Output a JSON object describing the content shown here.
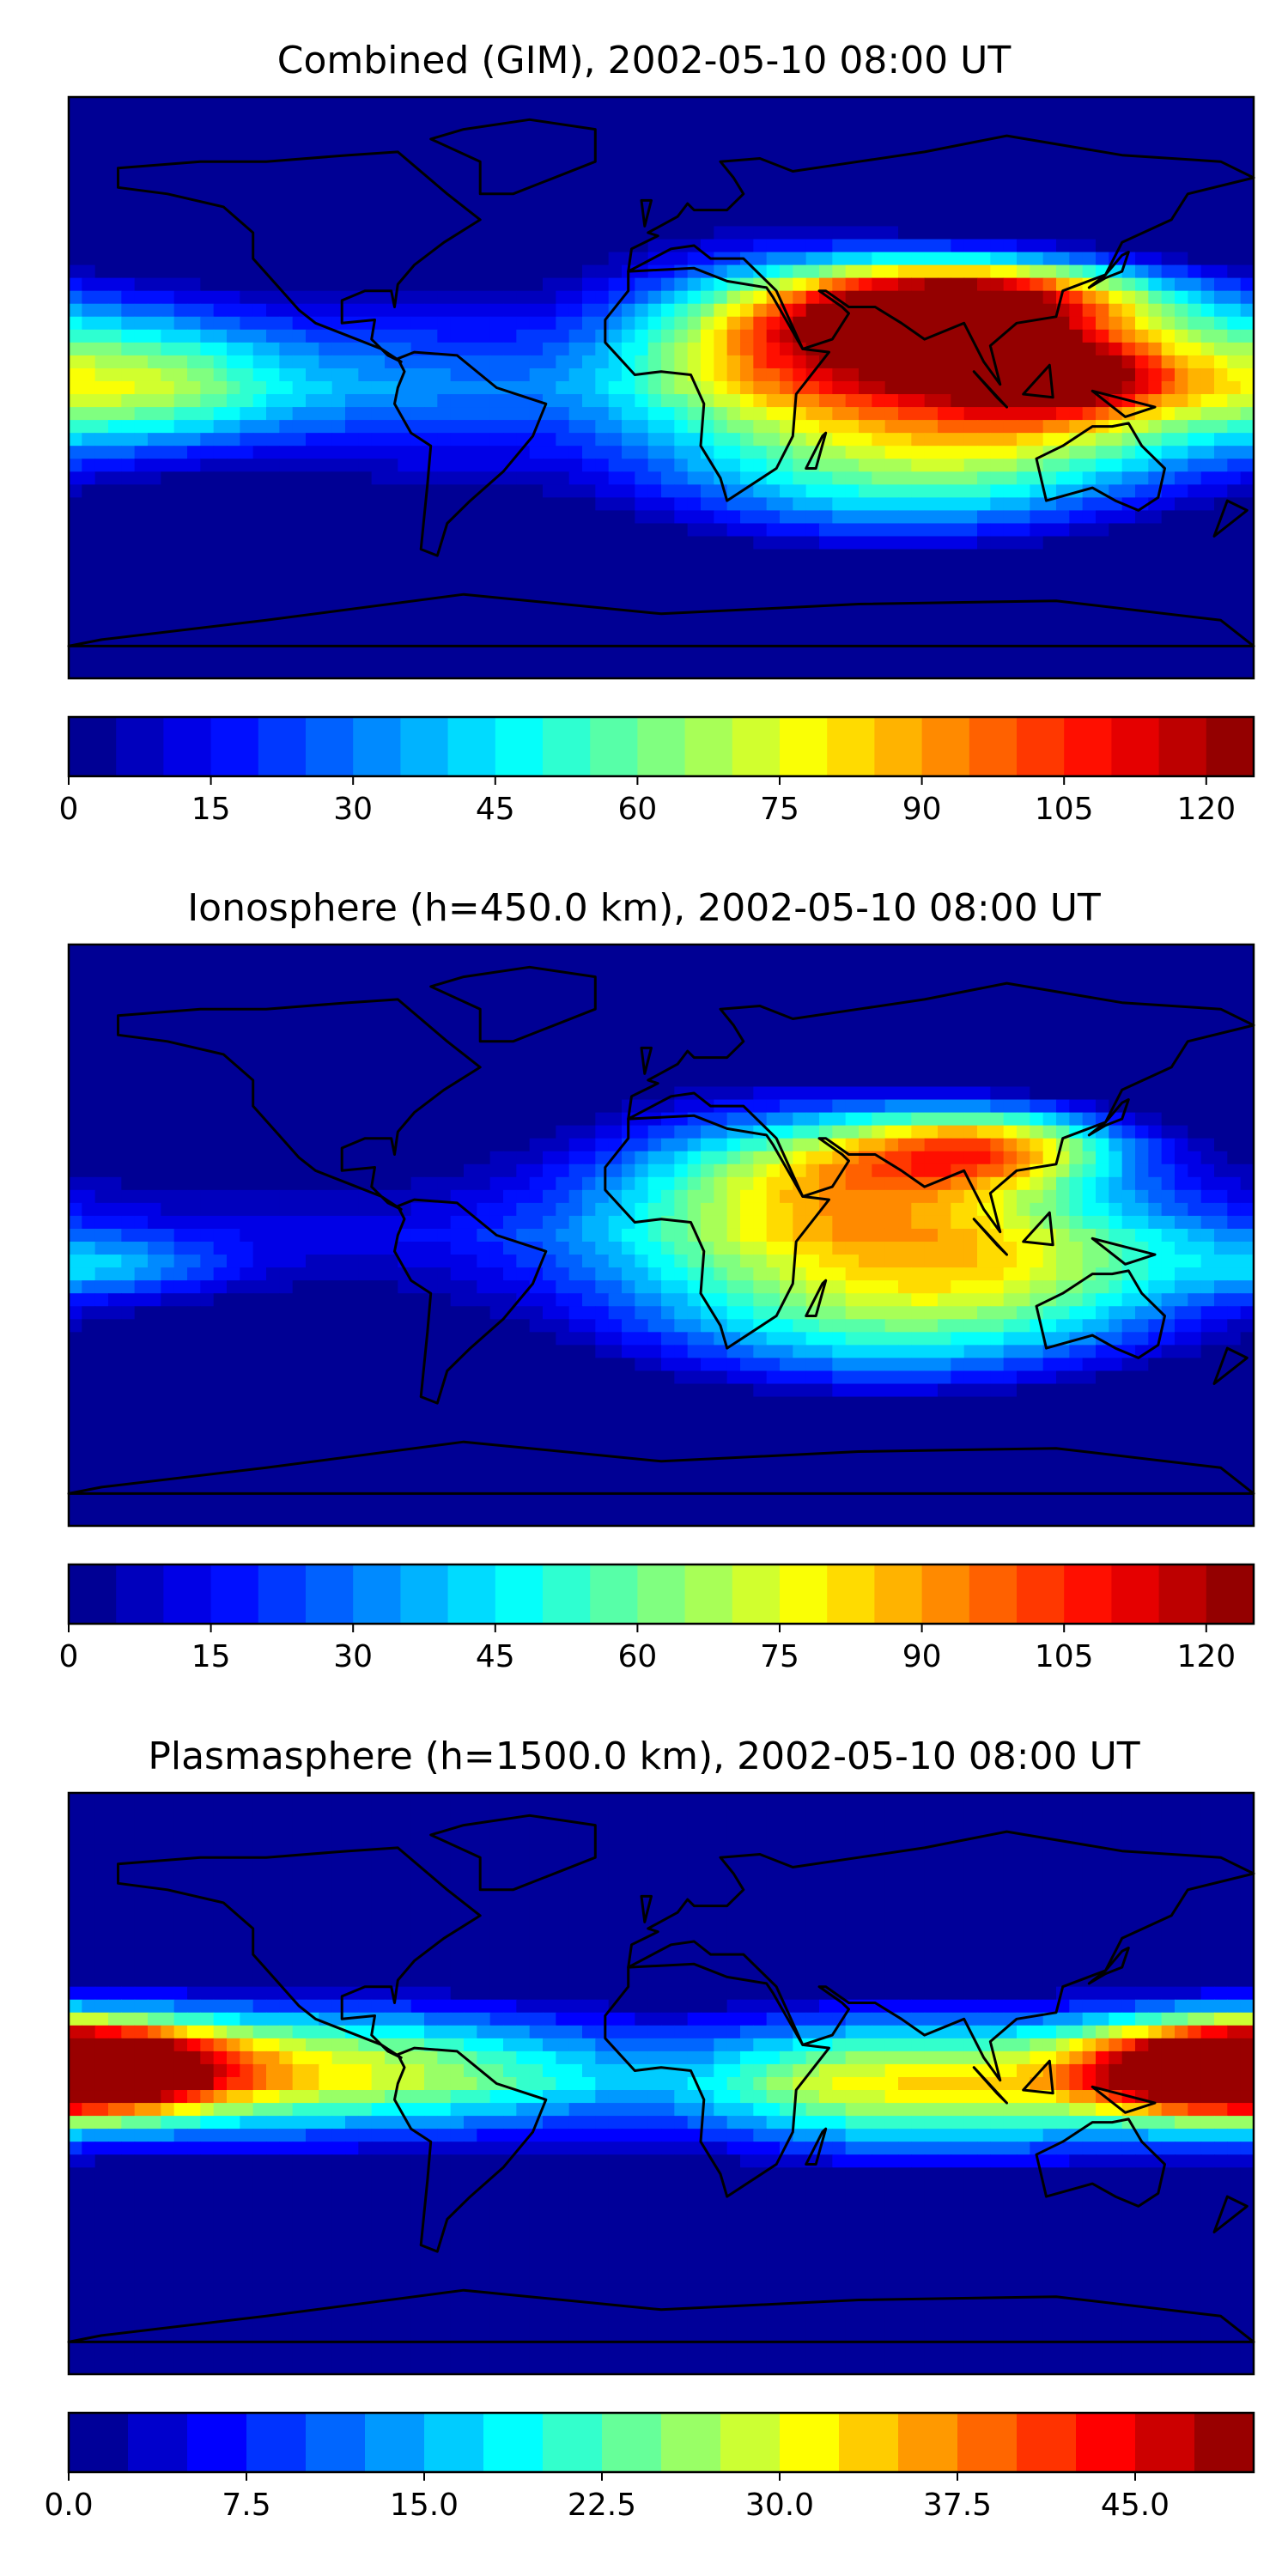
{
  "figure": {
    "panels": [
      {
        "id": "combined",
        "title": "Combined (GIM), 2002-05-10 08:00 UT",
        "colorbar": {
          "min": 0,
          "max": 125,
          "levels": 25,
          "ticks": [
            "0",
            "15",
            "30",
            "45",
            "60",
            "75",
            "90",
            "105",
            "120"
          ],
          "tick_values": [
            0,
            15,
            30,
            45,
            60,
            75,
            90,
            105,
            120
          ]
        },
        "blobs": [
          {
            "lon": 100,
            "lat": 28,
            "value": 118,
            "sx": 38,
            "sy": 9
          },
          {
            "lon": 60,
            "lat": 18,
            "value": 96,
            "sx": 40,
            "sy": 13
          },
          {
            "lon": 40,
            "lat": 0,
            "value": 64,
            "sx": 50,
            "sy": 20
          },
          {
            "lon": 110,
            "lat": -10,
            "value": 70,
            "sx": 45,
            "sy": 16
          },
          {
            "lon": 120,
            "lat": 5,
            "value": 90,
            "sx": 25,
            "sy": 9
          },
          {
            "lon": 70,
            "lat": -35,
            "value": 52,
            "sx": 55,
            "sy": 15
          },
          {
            "lon": -170,
            "lat": 10,
            "value": 58,
            "sx": 45,
            "sy": 15
          },
          {
            "lon": -150,
            "lat": -5,
            "value": 42,
            "sx": 35,
            "sy": 12
          },
          {
            "lon": 20,
            "lat": 50,
            "value": 30,
            "sx": 45,
            "sy": 15
          },
          {
            "lon": -75,
            "lat": 0,
            "value": 26,
            "sx": 25,
            "sy": 30
          }
        ],
        "background": 12
      },
      {
        "id": "ionosphere",
        "title": "Ionosphere  (h=450.0 km), 2002-05-10 08:00 UT",
        "colorbar": {
          "min": 0,
          "max": 125,
          "levels": 25,
          "ticks": [
            "0",
            "15",
            "30",
            "45",
            "60",
            "75",
            "90",
            "105",
            "120"
          ],
          "tick_values": [
            0,
            15,
            30,
            45,
            60,
            75,
            90,
            105,
            120
          ]
        },
        "blobs": [
          {
            "lon": 100,
            "lat": 28,
            "value": 88,
            "sx": 30,
            "sy": 9
          },
          {
            "lon": 55,
            "lat": 20,
            "value": 72,
            "sx": 45,
            "sy": 13
          },
          {
            "lon": 40,
            "lat": -5,
            "value": 62,
            "sx": 50,
            "sy": 20
          },
          {
            "lon": 110,
            "lat": -10,
            "value": 64,
            "sx": 45,
            "sy": 16
          },
          {
            "lon": 70,
            "lat": -35,
            "value": 48,
            "sx": 55,
            "sy": 15
          },
          {
            "lon": -165,
            "lat": -10,
            "value": 40,
            "sx": 25,
            "sy": 6
          },
          {
            "lon": 20,
            "lat": 50,
            "value": 28,
            "sx": 45,
            "sy": 15
          }
        ],
        "background": 12
      },
      {
        "id": "plasmasphere",
        "title": "Plasmasphere (h=1500.0 km), 2002-05-10 08:00 UT",
        "colorbar": {
          "min": 0,
          "max": 50,
          "levels": 20,
          "ticks": [
            "0.0",
            "7.5",
            "15.0",
            "22.5",
            "30.0",
            "37.5",
            "45.0"
          ],
          "tick_values": [
            0,
            7.5,
            15,
            22.5,
            30,
            37.5,
            45
          ]
        },
        "blobs": [
          {
            "lon": 170,
            "lat": 5,
            "value": 44,
            "sx": 30,
            "sy": 10
          },
          {
            "lon": -175,
            "lat": 5,
            "value": 40,
            "sx": 30,
            "sy": 10
          },
          {
            "lon": 100,
            "lat": 0,
            "value": 30,
            "sx": 50,
            "sy": 16
          },
          {
            "lon": -130,
            "lat": 5,
            "value": 30,
            "sx": 45,
            "sy": 14
          },
          {
            "lon": -60,
            "lat": 5,
            "value": 22,
            "sx": 40,
            "sy": 14
          },
          {
            "lon": 50,
            "lat": 0,
            "value": 18,
            "sx": 30,
            "sy": 14
          }
        ],
        "background": 7
      }
    ]
  }
}
